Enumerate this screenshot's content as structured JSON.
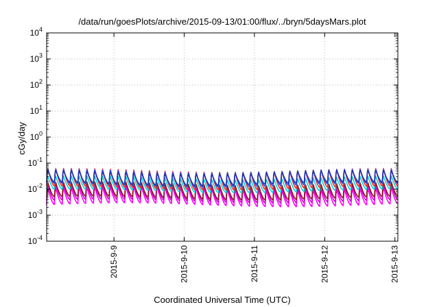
{
  "chart_data": {
    "type": "line",
    "title": "/data/run/goesPlots/archive/2015-09-13/01:00/flux/../bryn/5daysMars.plot",
    "xlabel": "Coordinated Universal Time (UTC)",
    "ylabel": "cGy/day",
    "yscale": "log",
    "ylim": [
      0.0001,
      10000
    ],
    "y_ticks": [
      {
        "base": "10",
        "exp": "4",
        "value": 10000
      },
      {
        "base": "10",
        "exp": "3",
        "value": 1000
      },
      {
        "base": "10",
        "exp": "2",
        "value": 100
      },
      {
        "base": "10",
        "exp": "1",
        "value": 10
      },
      {
        "base": "10",
        "exp": "0",
        "value": 1
      },
      {
        "base": "10",
        "exp": "-1",
        "value": 0.1
      },
      {
        "base": "10",
        "exp": "-2",
        "value": 0.01
      },
      {
        "base": "10",
        "exp": "-3",
        "value": 0.001
      },
      {
        "base": "10",
        "exp": "-4",
        "value": 0.0001
      }
    ],
    "xlim": [
      "2015-09-08 01:00",
      "2015-09-13 01:00"
    ],
    "x_ticks": [
      {
        "label": "2015-9-9",
        "date": "2015-09-09"
      },
      {
        "label": "2015-9-10",
        "date": "2015-09-10"
      },
      {
        "label": "2015-9-11",
        "date": "2015-09-11"
      },
      {
        "label": "2015-9-12",
        "date": "2015-09-12"
      },
      {
        "label": "2015-9-13",
        "date": "2015-09-13"
      }
    ],
    "grid": true,
    "legend": "none",
    "series": [
      {
        "color": "#ff00ff",
        "peak": 0.012,
        "trough": 0.0025
      },
      {
        "color": "#cc00cc",
        "peak": 0.016,
        "trough": 0.0035
      },
      {
        "color": "#8b1a1a",
        "peak": 0.018,
        "trough": 0.0045
      },
      {
        "color": "#00d8d8",
        "peak": 0.03,
        "trough": 0.0085
      },
      {
        "color": "#ff3030",
        "peak": 0.06,
        "trough": 0.011
      },
      {
        "color": "#2255ff",
        "peak": 0.055,
        "trough": 0.014
      },
      {
        "color": "#2233aa",
        "peak": 0.05,
        "trough": 0.016
      }
    ],
    "oscillation_cycles": 45
  }
}
